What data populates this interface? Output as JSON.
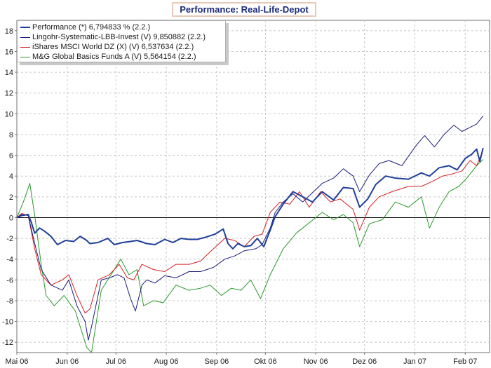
{
  "chart_data": {
    "type": "line",
    "title": "Performance: Real-Life-Depot",
    "xlabel": "",
    "ylabel": "",
    "ylim": [
      -13,
      19
    ],
    "yticks": [
      -12,
      -10,
      -8,
      -6,
      -4,
      -2,
      0,
      2,
      4,
      6,
      8,
      10,
      12,
      14,
      16,
      18
    ],
    "x_tick_labels": [
      "Mai 06",
      "Jun 06",
      "Jul 06",
      "Aug 06",
      "Sep 06",
      "Okt 06",
      "Nov 06",
      "Dez 06",
      "Jan 07",
      "Feb 07"
    ],
    "grid": true,
    "legend_position": "top-left",
    "x_start": "2006-05-01",
    "x_end": "2007-02-16",
    "series": [
      {
        "name": "Performance (*) 6,794833 % (2.2.)",
        "color": "#1f3f9a",
        "width": 2,
        "x": [
          "2006-05-01",
          "2006-05-04",
          "2006-05-08",
          "2006-05-10",
          "2006-05-12",
          "2006-05-15",
          "2006-05-18",
          "2006-05-22",
          "2006-05-26",
          "2006-05-31",
          "2006-06-05",
          "2006-06-09",
          "2006-06-13",
          "2006-06-15",
          "2006-06-20",
          "2006-06-26",
          "2006-06-30",
          "2006-07-05",
          "2006-07-10",
          "2006-07-14",
          "2006-07-20",
          "2006-07-25",
          "2006-07-31",
          "2006-08-05",
          "2006-08-10",
          "2006-08-15",
          "2006-08-20",
          "2006-08-25",
          "2006-08-31",
          "2006-09-05",
          "2006-09-08",
          "2006-09-11",
          "2006-09-14",
          "2006-09-18",
          "2006-09-22",
          "2006-09-26",
          "2006-09-30",
          "2006-10-04",
          "2006-10-07",
          "2006-10-12",
          "2006-10-18",
          "2006-10-24",
          "2006-10-30",
          "2006-11-05",
          "2006-11-12",
          "2006-11-18",
          "2006-11-24",
          "2006-11-28",
          "2006-12-03",
          "2006-12-08",
          "2006-12-14",
          "2006-12-20",
          "2006-12-28",
          "2007-01-05",
          "2007-01-10",
          "2007-01-16",
          "2007-01-22",
          "2007-01-27",
          "2007-02-01",
          "2007-02-05",
          "2007-02-08",
          "2007-02-10",
          "2007-02-12"
        ],
        "values": [
          0,
          0.2,
          0.3,
          -0.5,
          -1.5,
          -1.0,
          -1.3,
          -1.8,
          -2.6,
          -2.2,
          -2.3,
          -1.8,
          -2.2,
          -2.5,
          -2.4,
          -2.0,
          -2.6,
          -2.4,
          -2.3,
          -2.2,
          -2.5,
          -2.6,
          -2.1,
          -2.4,
          -2.0,
          -2.1,
          -2.1,
          -1.9,
          -1.6,
          -1.1,
          -2.5,
          -3.0,
          -2.5,
          -2.8,
          -2.7,
          -2.0,
          -2.8,
          -1.2,
          0.1,
          1.3,
          2.5,
          2.0,
          1.5,
          2.5,
          1.7,
          2.9,
          2.8,
          1.0,
          1.8,
          3.2,
          4.0,
          3.8,
          3.7,
          4.3,
          4.0,
          4.8,
          5.0,
          4.6,
          5.7,
          6.1,
          6.6,
          5.4,
          6.7
        ]
      },
      {
        "name": "Lingohr-Systematic-LBB-Invest (V) 9,850882 (2.2.)",
        "color": "#1a1a7a",
        "width": 1,
        "x": [
          "2006-05-01",
          "2006-05-04",
          "2006-05-08",
          "2006-05-12",
          "2006-05-16",
          "2006-05-22",
          "2006-05-29",
          "2006-06-02",
          "2006-06-07",
          "2006-06-12",
          "2006-06-14",
          "2006-06-16",
          "2006-06-22",
          "2006-06-27",
          "2006-07-02",
          "2006-07-06",
          "2006-07-10",
          "2006-07-13",
          "2006-07-17",
          "2006-07-20",
          "2006-07-25",
          "2006-07-31",
          "2006-08-07",
          "2006-08-15",
          "2006-08-22",
          "2006-08-30",
          "2006-09-06",
          "2006-09-12",
          "2006-09-18",
          "2006-09-25",
          "2006-09-29",
          "2006-10-04",
          "2006-10-07",
          "2006-10-12",
          "2006-10-18",
          "2006-10-24",
          "2006-10-30",
          "2006-11-05",
          "2006-11-12",
          "2006-11-18",
          "2006-11-24",
          "2006-11-28",
          "2006-12-04",
          "2006-12-10",
          "2006-12-16",
          "2006-12-24",
          "2007-01-02",
          "2007-01-07",
          "2007-01-13",
          "2007-01-19",
          "2007-01-25",
          "2007-01-30",
          "2007-02-04",
          "2007-02-08",
          "2007-02-12"
        ],
        "values": [
          0,
          0.3,
          0.2,
          -2.5,
          -5.0,
          -6.5,
          -7.0,
          -6.0,
          -8.5,
          -10.0,
          -11.8,
          -10.5,
          -6.0,
          -5.8,
          -5.5,
          -5.8,
          -7.8,
          -9.0,
          -6.5,
          -6.0,
          -6.3,
          -5.6,
          -5.8,
          -5.2,
          -5.2,
          -4.8,
          -4.0,
          -3.7,
          -3.2,
          -3.0,
          -2.6,
          -1.0,
          0.5,
          1.5,
          2.3,
          1.5,
          2.4,
          3.3,
          3.8,
          4.7,
          4.0,
          2.5,
          4.1,
          5.2,
          5.5,
          5.0,
          7.0,
          7.9,
          6.8,
          8.0,
          8.9,
          8.3,
          8.7,
          9.0,
          9.8
        ]
      },
      {
        "name": "iShares MSCI World DZ (X) (V) 6,537634 (2.2.)",
        "color": "#d42020",
        "width": 1,
        "x": [
          "2006-05-01",
          "2006-05-04",
          "2006-05-08",
          "2006-05-12",
          "2006-05-16",
          "2006-05-22",
          "2006-05-29",
          "2006-06-02",
          "2006-06-07",
          "2006-06-12",
          "2006-06-15",
          "2006-06-20",
          "2006-06-27",
          "2006-07-03",
          "2006-07-08",
          "2006-07-12",
          "2006-07-17",
          "2006-07-24",
          "2006-07-31",
          "2006-08-07",
          "2006-08-15",
          "2006-08-22",
          "2006-08-30",
          "2006-09-06",
          "2006-09-12",
          "2006-09-18",
          "2006-09-24",
          "2006-09-29",
          "2006-10-04",
          "2006-10-10",
          "2006-10-16",
          "2006-10-22",
          "2006-10-28",
          "2006-11-04",
          "2006-11-10",
          "2006-11-16",
          "2006-11-24",
          "2006-11-28",
          "2006-12-04",
          "2006-12-10",
          "2006-12-18",
          "2006-12-28",
          "2007-01-05",
          "2007-01-12",
          "2007-01-18",
          "2007-01-24",
          "2007-01-30",
          "2007-02-04",
          "2007-02-08",
          "2007-02-12"
        ],
        "values": [
          0,
          0.4,
          0.2,
          -3.0,
          -5.5,
          -6.5,
          -6.0,
          -5.5,
          -7.5,
          -9.2,
          -8.8,
          -6.0,
          -5.5,
          -4.5,
          -5.8,
          -6.0,
          -4.5,
          -5.0,
          -5.2,
          -4.5,
          -4.5,
          -4.2,
          -3.0,
          -2.0,
          -2.2,
          -2.8,
          -1.8,
          -1.6,
          0.5,
          1.5,
          1.3,
          2.5,
          1.0,
          2.5,
          1.5,
          1.8,
          0.8,
          -1.2,
          1.0,
          2.0,
          2.5,
          3.0,
          3.0,
          3.5,
          4.0,
          4.2,
          4.5,
          5.5,
          5.0,
          6.5
        ]
      },
      {
        "name": "M&G Global Basics Funds A (V) 5,564154 (2.2.)",
        "color": "#2a9a2a",
        "width": 1,
        "x": [
          "2006-05-01",
          "2006-05-05",
          "2006-05-09",
          "2006-05-12",
          "2006-05-16",
          "2006-05-19",
          "2006-05-24",
          "2006-05-30",
          "2006-06-06",
          "2006-06-13",
          "2006-06-16",
          "2006-06-22",
          "2006-06-28",
          "2006-07-04",
          "2006-07-09",
          "2006-07-14",
          "2006-07-18",
          "2006-07-24",
          "2006-07-30",
          "2006-08-07",
          "2006-08-15",
          "2006-08-22",
          "2006-08-28",
          "2006-09-04",
          "2006-09-10",
          "2006-09-16",
          "2006-09-22",
          "2006-09-28",
          "2006-10-04",
          "2006-10-12",
          "2006-10-20",
          "2006-10-28",
          "2006-11-05",
          "2006-11-12",
          "2006-11-18",
          "2006-11-24",
          "2006-11-28",
          "2006-12-04",
          "2006-12-12",
          "2006-12-20",
          "2006-12-28",
          "2007-01-05",
          "2007-01-10",
          "2007-01-16",
          "2007-01-22",
          "2007-01-28",
          "2007-02-02",
          "2007-02-08",
          "2007-02-12"
        ],
        "values": [
          0,
          1.5,
          3.3,
          0.2,
          -4.5,
          -7.5,
          -8.5,
          -7.5,
          -9.0,
          -12.5,
          -13.0,
          -7.0,
          -5.5,
          -4.0,
          -5.5,
          -5.0,
          -8.5,
          -8.0,
          -8.2,
          -6.5,
          -7.0,
          -6.8,
          -6.5,
          -7.5,
          -6.8,
          -7.0,
          -6.0,
          -7.8,
          -5.5,
          -3.0,
          -1.5,
          -0.5,
          0.5,
          -0.2,
          0.3,
          -0.5,
          -2.8,
          -0.6,
          -0.2,
          1.5,
          1.0,
          2.0,
          -1.0,
          1.0,
          2.5,
          3.0,
          3.8,
          5.0,
          5.6
        ]
      }
    ]
  }
}
